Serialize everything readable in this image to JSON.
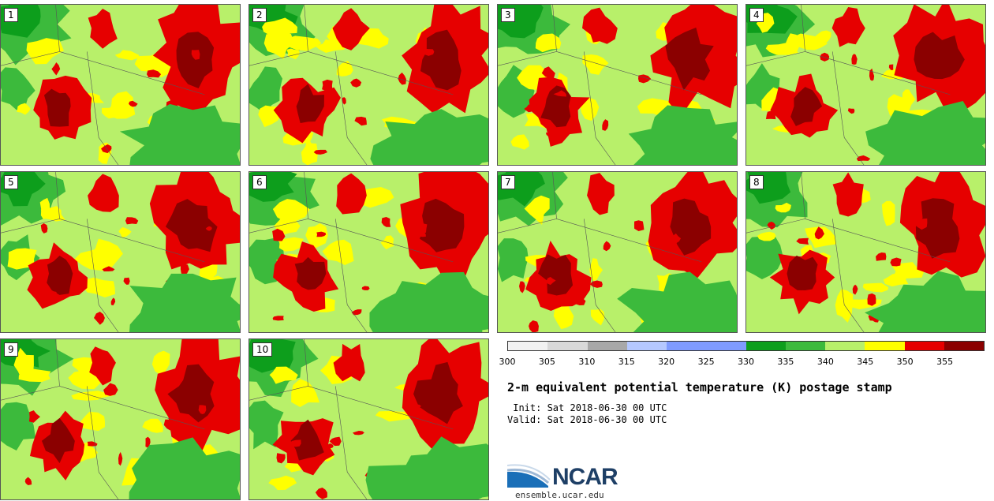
{
  "panels": [
    {
      "label": "1"
    },
    {
      "label": "2"
    },
    {
      "label": "3"
    },
    {
      "label": "4"
    },
    {
      "label": "5"
    },
    {
      "label": "6"
    },
    {
      "label": "7"
    },
    {
      "label": "8"
    },
    {
      "label": "9"
    },
    {
      "label": "10"
    }
  ],
  "colorbar": {
    "colors": [
      "#f2f2f2",
      "#d9d9d9",
      "#a8a8a8",
      "#b5c8ff",
      "#7f9bff",
      "#7f9bff",
      "#0d9e1c",
      "#3cba3c",
      "#b8f06a",
      "#ffff00",
      "#e60000",
      "#8b0000"
    ],
    "ticks": [
      "300",
      "305",
      "310",
      "315",
      "320",
      "325",
      "330",
      "335",
      "340",
      "345",
      "350",
      "355"
    ]
  },
  "title": "2-m equivalent potential temperature (K) postage stamp",
  "init": " Init: Sat 2018-06-30 00 UTC",
  "valid": "Valid: Sat 2018-06-30 00 UTC",
  "logo": {
    "name": "NCAR",
    "url": "ensemble.ucar.edu"
  }
}
